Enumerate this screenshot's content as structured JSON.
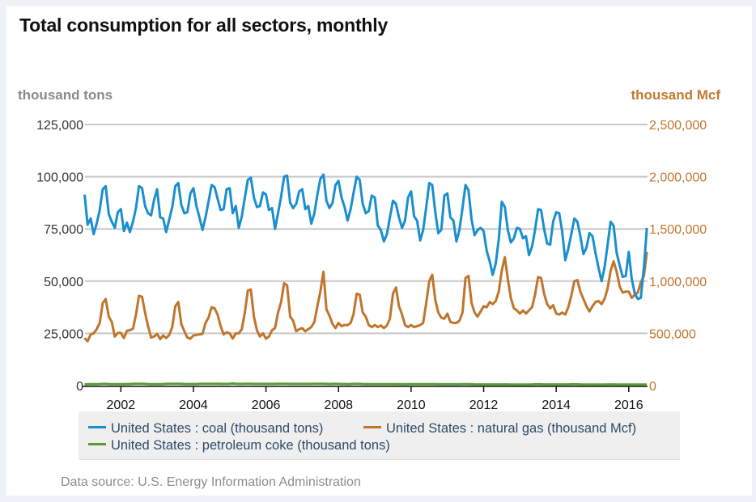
{
  "page": {
    "title": "Total consumption for all sectors, monthly",
    "source_text": "Data source: U.S. Energy Information Administration"
  },
  "chart_data": {
    "type": "line",
    "title": "Total consumption for all sectors, monthly",
    "xlabel": "",
    "ylabel_left": "thousand tons",
    "ylabel_right": "thousand Mcf",
    "x_start": "2001-01",
    "x_end": "2016-07",
    "x_frequency": "monthly",
    "x_ticks": [
      "2002",
      "2004",
      "2006",
      "2008",
      "2010",
      "2012",
      "2014",
      "2016"
    ],
    "ylim_left": [
      0,
      125000
    ],
    "ylim_right": [
      0,
      2500000
    ],
    "yticks_left": [
      "0",
      "25,000",
      "50,000",
      "75,000",
      "100,000",
      "125,000"
    ],
    "yticks_right": [
      "0",
      "500,000",
      "1,000,000",
      "1,500,000",
      "2,000,000",
      "2,500,000"
    ],
    "grid": true,
    "legend_position": "bottom",
    "series": [
      {
        "name": "United States : coal (thousand tons)",
        "axis": "left",
        "color": "#1a8fcf",
        "values": [
          91500,
          77000,
          80000,
          72500,
          77500,
          84000,
          94000,
          95500,
          82000,
          78500,
          75500,
          83000,
          84500,
          74000,
          78000,
          73500,
          78500,
          85000,
          95500,
          94500,
          86000,
          82500,
          81500,
          89000,
          94000,
          80500,
          80000,
          73500,
          79500,
          85500,
          95500,
          97000,
          86500,
          82500,
          83000,
          92000,
          94500,
          86000,
          80500,
          74500,
          80500,
          88000,
          96000,
          95000,
          89500,
          84000,
          84500,
          94000,
          94500,
          82500,
          86000,
          75500,
          81000,
          90000,
          98500,
          99500,
          90000,
          85500,
          86000,
          92500,
          91500,
          84000,
          85000,
          75000,
          82500,
          90500,
          100000,
          100500,
          87500,
          85000,
          87000,
          93000,
          94000,
          84500,
          86000,
          77500,
          82500,
          91500,
          99000,
          101000,
          88500,
          85000,
          87500,
          96000,
          98000,
          90000,
          85500,
          79000,
          84500,
          92500,
          100000,
          98500,
          87000,
          82500,
          83500,
          91000,
          90000,
          76500,
          74500,
          69000,
          72500,
          80500,
          88500,
          87000,
          80500,
          75500,
          79000,
          90000,
          93000,
          81000,
          79000,
          69500,
          74500,
          85500,
          97000,
          96000,
          83000,
          73000,
          74500,
          91000,
          92000,
          80500,
          79000,
          69000,
          74500,
          85000,
          96000,
          93500,
          79500,
          72000,
          74500,
          75500,
          74000,
          64500,
          59500,
          53000,
          58500,
          70000,
          88000,
          85500,
          74500,
          68500,
          70500,
          75500,
          75000,
          70500,
          71500,
          62500,
          66500,
          74500,
          84500,
          84000,
          75000,
          68000,
          67500,
          78500,
          83000,
          82500,
          73500,
          60000,
          65500,
          72500,
          80000,
          78500,
          71500,
          63000,
          66000,
          73000,
          71500,
          63500,
          56500,
          50000,
          56500,
          67500,
          78500,
          76500,
          63500,
          57500,
          52000,
          52500,
          64000,
          51000,
          44000,
          41500,
          42000,
          56500,
          75500
        ]
      },
      {
        "name": "United States : natural gas (thousand Mcf)",
        "axis": "right",
        "color": "#c0752c",
        "values": [
          455000,
          425000,
          490000,
          500000,
          540000,
          600000,
          790000,
          830000,
          660000,
          610000,
          470000,
          505000,
          505000,
          455000,
          525000,
          530000,
          545000,
          680000,
          860000,
          850000,
          700000,
          570000,
          460000,
          470000,
          495000,
          445000,
          480000,
          455000,
          485000,
          560000,
          760000,
          800000,
          590000,
          520000,
          460000,
          450000,
          480000,
          485000,
          490000,
          495000,
          600000,
          650000,
          750000,
          740000,
          680000,
          570000,
          490000,
          510000,
          500000,
          450000,
          500000,
          500000,
          540000,
          700000,
          910000,
          920000,
          660000,
          530000,
          470000,
          500000,
          450000,
          470000,
          530000,
          550000,
          700000,
          800000,
          980000,
          960000,
          660000,
          620000,
          520000,
          540000,
          550000,
          520000,
          540000,
          560000,
          610000,
          760000,
          900000,
          1090000,
          730000,
          670000,
          590000,
          550000,
          600000,
          570000,
          580000,
          580000,
          600000,
          690000,
          880000,
          870000,
          700000,
          660000,
          580000,
          560000,
          580000,
          560000,
          575000,
          550000,
          575000,
          640000,
          880000,
          940000,
          760000,
          680000,
          580000,
          560000,
          580000,
          560000,
          570000,
          580000,
          600000,
          790000,
          1000000,
          1060000,
          820000,
          700000,
          650000,
          640000,
          690000,
          610000,
          600000,
          600000,
          620000,
          700000,
          1030000,
          1050000,
          790000,
          700000,
          660000,
          710000,
          760000,
          750000,
          800000,
          780000,
          810000,
          900000,
          1100000,
          1230000,
          1020000,
          840000,
          740000,
          720000,
          690000,
          720000,
          690000,
          720000,
          750000,
          870000,
          1040000,
          1030000,
          880000,
          780000,
          740000,
          770000,
          690000,
          680000,
          700000,
          680000,
          750000,
          860000,
          1000000,
          1010000,
          900000,
          830000,
          760000,
          710000,
          760000,
          800000,
          810000,
          780000,
          830000,
          930000,
          1100000,
          1190000,
          1090000,
          950000,
          890000,
          900000,
          900000,
          840000,
          870000,
          890000,
          990000,
          1050000,
          1280000
        ]
      },
      {
        "name": "United States : petroleum coke (thousand tons)",
        "axis": "left",
        "color": "#5a9a35",
        "values": [
          600,
          600,
          650,
          650,
          700,
          750,
          800,
          800,
          750,
          700,
          650,
          650,
          700,
          700,
          750,
          750,
          800,
          850,
          850,
          850,
          800,
          750,
          700,
          700,
          700,
          700,
          750,
          800,
          850,
          850,
          850,
          850,
          800,
          750,
          750,
          750,
          750,
          750,
          800,
          850,
          850,
          900,
          900,
          900,
          850,
          800,
          800,
          800,
          900,
          1000,
          850,
          800,
          800,
          850,
          850,
          850,
          800,
          800,
          800,
          800,
          800,
          800,
          800,
          800,
          850,
          850,
          850,
          850,
          800,
          800,
          800,
          800,
          800,
          800,
          800,
          800,
          850,
          850,
          850,
          850,
          800,
          750,
          800,
          800,
          800,
          750,
          750,
          700,
          750,
          800,
          800,
          800,
          750,
          700,
          700,
          700,
          650,
          650,
          700,
          650,
          700,
          700,
          700,
          700,
          650,
          600,
          600,
          650,
          650,
          650,
          650,
          650,
          650,
          700,
          700,
          700,
          650,
          600,
          600,
          600,
          600,
          600,
          600,
          600,
          600,
          650,
          650,
          650,
          600,
          550,
          550,
          550,
          550,
          550,
          550,
          550,
          550,
          550,
          550,
          550,
          550,
          500,
          500,
          500,
          500,
          500,
          500,
          500,
          550,
          600,
          600,
          600,
          550,
          550,
          550,
          550,
          550,
          550,
          550,
          550,
          550,
          600,
          600,
          600,
          550,
          500,
          500,
          500,
          500,
          500,
          500,
          500,
          500,
          550,
          550,
          550,
          500,
          450,
          450,
          450,
          450,
          450,
          450,
          450,
          450,
          500,
          500
        ]
      }
    ]
  },
  "legend": {
    "items": [
      {
        "label": "United States : coal (thousand tons)",
        "color": "#1a8fcf"
      },
      {
        "label": "United States : natural gas (thousand Mcf)",
        "color": "#c0752c"
      },
      {
        "label": "United States : petroleum coke (thousand tons)",
        "color": "#5a9a35"
      }
    ]
  },
  "colors": {
    "left_axis_text": "#333333",
    "right_axis_text": "#c0752c",
    "left_unit_text": "#8a8a8a",
    "gridline": "#c8c8c8",
    "axis_line": "#111111"
  }
}
